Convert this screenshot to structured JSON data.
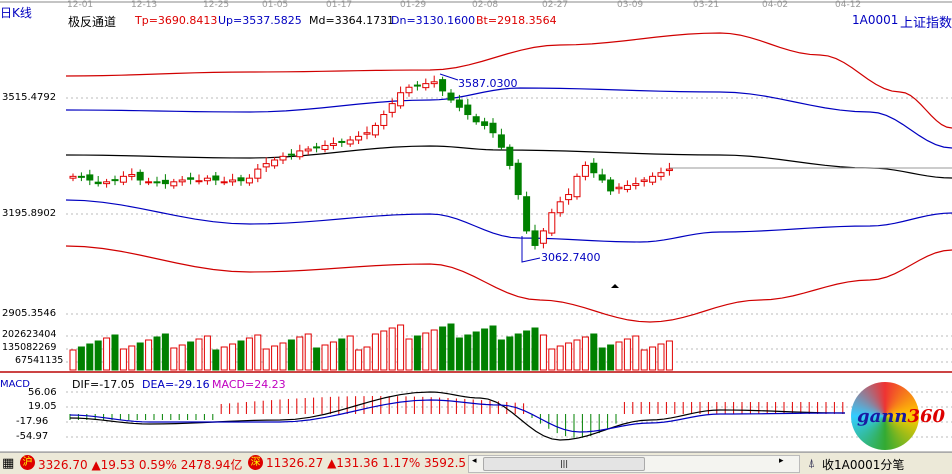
{
  "header": {
    "period": "日K线",
    "indicator": "极反通道",
    "tp": "Tp=3690.8413",
    "up": "Up=3537.5825",
    "md": "Md=3364.1731",
    "dn": "Dn=3130.1600",
    "bt": "Bt=2918.3564",
    "code": "1A0001",
    "name": "上证指数"
  },
  "dates": [
    "12-01",
    "12-13",
    "12-25",
    "01-05",
    "01-17",
    "01-29",
    "02-08",
    "02-27",
    "03-09",
    "03-21",
    "04-02",
    "04-12"
  ],
  "price_axis": [
    "3515.4792",
    "3195.8902",
    "2905.3546"
  ],
  "volume_axis": [
    "202623404",
    "135082269",
    "67541135"
  ],
  "annotations": {
    "high": "3587.0300",
    "low": "3062.7400"
  },
  "macd": {
    "title": "MACD",
    "dif": "DIF=-17.05",
    "dea": "DEA=-29.16",
    "macd": "MACD=24.23",
    "axis": [
      "56.06",
      "19.05",
      "-17.96",
      "-54.97"
    ]
  },
  "status": {
    "sh_badge": "沪",
    "sh": "3326.70 ▲19.53 0.59% 2478.94亿",
    "sz_badge": "深",
    "sz": "11326.27 ▲131.36 1.17% 3592.57",
    "right": "收1A0001分笔"
  },
  "logo": "gann360",
  "colors": {
    "up": "#e00000",
    "down": "#008000",
    "band_outer": "#d00000",
    "band_inner": "#0000c0",
    "mid": "#000000"
  },
  "chart_data": {
    "type": "candlestick",
    "closes": [
      3300,
      3298,
      3290,
      3280,
      3285,
      3290,
      3300,
      3305,
      3290,
      3285,
      3283,
      3280,
      3285,
      3290,
      3292,
      3288,
      3295,
      3290,
      3285,
      3290,
      3288,
      3295,
      3320,
      3335,
      3345,
      3355,
      3360,
      3370,
      3375,
      3380,
      3385,
      3390,
      3395,
      3400,
      3410,
      3420,
      3440,
      3470,
      3500,
      3530,
      3545,
      3550,
      3555,
      3560,
      3535,
      3510,
      3490,
      3470,
      3450,
      3440,
      3420,
      3380,
      3330,
      3250,
      3150,
      3110,
      3150,
      3200,
      3230,
      3250,
      3300,
      3330,
      3310,
      3290,
      3260,
      3270,
      3275,
      3280,
      3290,
      3300,
      3310,
      3320
    ]
  }
}
